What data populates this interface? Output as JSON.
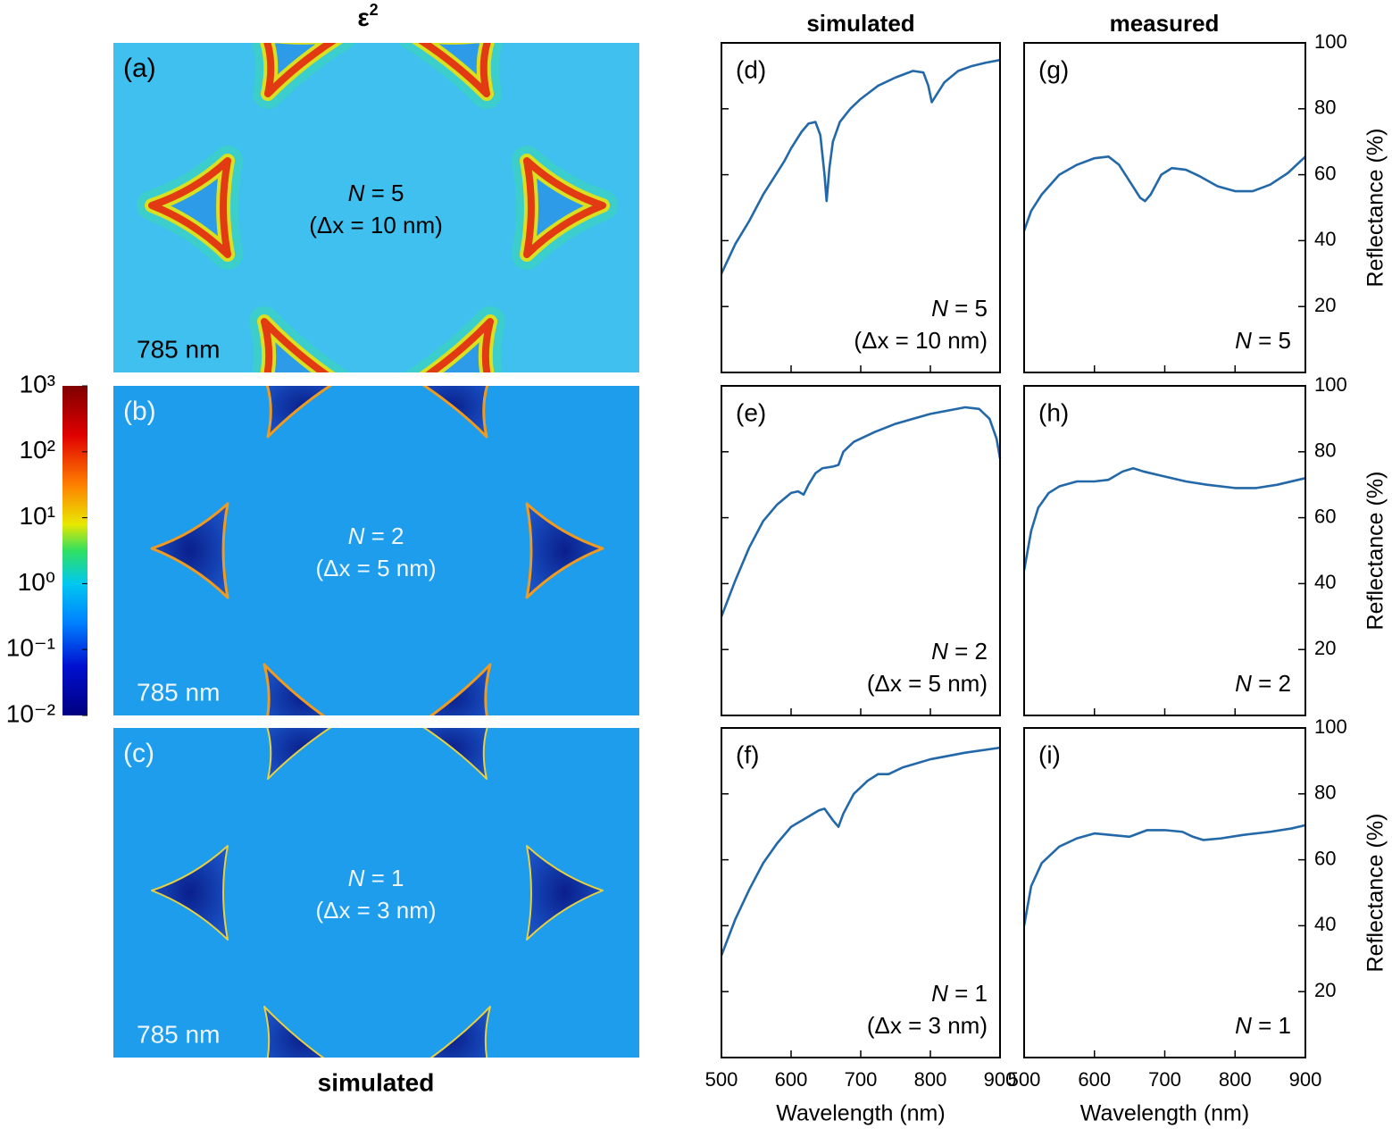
{
  "figure": {
    "field_title": {
      "base": "ε",
      "superscript": "2"
    },
    "field_caption": "simulated",
    "column_titles": [
      "simulated",
      "measured"
    ]
  },
  "colorbar": {
    "scale": "log",
    "lim": [
      0.01,
      1000
    ],
    "ticks": [
      {
        "value": 1000,
        "label": "10³"
      },
      {
        "value": 100,
        "label": "10²"
      },
      {
        "value": 10,
        "label": "10¹"
      },
      {
        "value": 1,
        "label": "10⁰"
      },
      {
        "value": 0.1,
        "label": "10⁻¹"
      },
      {
        "value": 0.01,
        "label": "10⁻²"
      }
    ]
  },
  "field_maps": [
    {
      "panel": "(a)",
      "n_label": {
        "symbol": "N",
        "text": " = 5"
      },
      "note": "(Δx = 10 nm)",
      "wavelength": "785 nm"
    },
    {
      "panel": "(b)",
      "n_label": {
        "symbol": "N",
        "text": " = 2"
      },
      "note": "(Δx = 5 nm)",
      "wavelength": "785 nm"
    },
    {
      "panel": "(c)",
      "n_label": {
        "symbol": "N",
        "text": " = 1"
      },
      "note": "(Δx = 3 nm)",
      "wavelength": "785 nm"
    }
  ],
  "chart_data": [
    {
      "type": "line",
      "panel": "(d)",
      "n_label": {
        "symbol": "N",
        "text": " = 5"
      },
      "note": "(Δx = 10 nm)",
      "x": [
        500,
        520,
        540,
        560,
        575,
        590,
        600,
        615,
        625,
        635,
        642,
        648,
        651,
        655,
        660,
        670,
        685,
        700,
        725,
        750,
        775,
        790,
        797,
        802,
        808,
        820,
        840,
        860,
        880,
        900
      ],
      "series": [
        {
          "color": "#2368a8",
          "values": [
            30,
            39,
            46,
            54,
            59,
            64,
            68,
            73,
            75.5,
            76,
            72,
            60,
            52,
            62,
            70,
            76,
            80,
            83,
            87,
            89.5,
            91.5,
            91,
            87,
            82,
            84,
            88,
            91.5,
            93,
            94,
            94.8
          ]
        }
      ],
      "xlim": [
        500,
        900
      ],
      "xticks": [
        500,
        600,
        700,
        800,
        900
      ],
      "ylim": [
        0,
        100
      ],
      "yticks": [
        20,
        40,
        60,
        80,
        100
      ],
      "yaxis_side": "left",
      "xtick_labels": false,
      "ytick_labels": false
    },
    {
      "type": "line",
      "panel": "(e)",
      "n_label": {
        "symbol": "N",
        "text": " = 2"
      },
      "note": "(Δx = 5 nm)",
      "x": [
        500,
        520,
        540,
        560,
        580,
        600,
        610,
        618,
        625,
        635,
        645,
        660,
        668,
        675,
        690,
        720,
        750,
        800,
        850,
        870,
        885,
        895,
        900
      ],
      "series": [
        {
          "color": "#2368a8",
          "values": [
            30,
            41,
            51,
            59,
            64,
            67.5,
            68,
            67,
            70,
            73.5,
            75,
            75.5,
            76,
            80,
            83,
            86,
            88.5,
            91.5,
            93.5,
            93,
            90,
            84,
            78
          ]
        }
      ],
      "xlim": [
        500,
        900
      ],
      "xticks": [
        500,
        600,
        700,
        800,
        900
      ],
      "ylim": [
        0,
        100
      ],
      "yticks": [
        20,
        40,
        60,
        80,
        100
      ],
      "yaxis_side": "left",
      "xtick_labels": false,
      "ytick_labels": false
    },
    {
      "type": "line",
      "panel": "(f)",
      "n_label": {
        "symbol": "N",
        "text": " = 1"
      },
      "note": "(Δx = 3 nm)",
      "x": [
        500,
        520,
        540,
        560,
        580,
        600,
        620,
        640,
        648,
        660,
        668,
        675,
        690,
        710,
        725,
        740,
        760,
        800,
        850,
        900
      ],
      "series": [
        {
          "color": "#2368a8",
          "values": [
            31,
            42,
            51,
            59,
            65,
            70,
            72.5,
            75,
            75.5,
            72,
            70,
            74,
            80,
            84,
            86,
            86,
            88,
            90.5,
            92.5,
            94
          ]
        }
      ],
      "xlim": [
        500,
        900
      ],
      "xticks": [
        500,
        600,
        700,
        800,
        900
      ],
      "ylim": [
        0,
        100
      ],
      "yticks": [
        20,
        40,
        60,
        80,
        100
      ],
      "xlabel": "Wavelength (nm)",
      "yaxis_side": "left",
      "xtick_labels": true,
      "ytick_labels": false
    },
    {
      "type": "line",
      "panel": "(g)",
      "n_label": {
        "symbol": "N",
        "text": " = 5"
      },
      "x": [
        500,
        510,
        525,
        550,
        575,
        600,
        620,
        635,
        650,
        665,
        672,
        680,
        695,
        710,
        730,
        750,
        775,
        800,
        825,
        850,
        875,
        900
      ],
      "series": [
        {
          "color": "#2368a8",
          "values": [
            43,
            49,
            54,
            60,
            63,
            65,
            65.5,
            63,
            58,
            53,
            52,
            54,
            60,
            62,
            61.5,
            59.5,
            56.5,
            55,
            55,
            57,
            60.5,
            65.5
          ]
        }
      ],
      "xlim": [
        500,
        900
      ],
      "xticks": [
        500,
        600,
        700,
        800,
        900
      ],
      "ylim": [
        0,
        100
      ],
      "yticks": [
        20,
        40,
        60,
        80,
        100
      ],
      "ylabel": "Reflectance (%)",
      "yaxis_side": "right",
      "xtick_labels": false,
      "ytick_labels": true
    },
    {
      "type": "line",
      "panel": "(h)",
      "n_label": {
        "symbol": "N",
        "text": " = 2"
      },
      "x": [
        500,
        510,
        520,
        535,
        550,
        575,
        600,
        620,
        640,
        655,
        670,
        700,
        730,
        760,
        800,
        830,
        860,
        900
      ],
      "series": [
        {
          "color": "#2368a8",
          "values": [
            44,
            56,
            63,
            67.5,
            69.5,
            71,
            71,
            71.5,
            74,
            75,
            74,
            72.5,
            71,
            70,
            69,
            69,
            70,
            72
          ]
        }
      ],
      "xlim": [
        500,
        900
      ],
      "xticks": [
        500,
        600,
        700,
        800,
        900
      ],
      "ylim": [
        0,
        100
      ],
      "yticks": [
        20,
        40,
        60,
        80,
        100
      ],
      "ylabel": "Reflectance (%)",
      "yaxis_side": "right",
      "xtick_labels": false,
      "ytick_labels": true
    },
    {
      "type": "line",
      "panel": "(i)",
      "n_label": {
        "symbol": "N",
        "text": " = 1"
      },
      "x": [
        500,
        510,
        525,
        550,
        575,
        600,
        625,
        650,
        675,
        700,
        725,
        740,
        755,
        780,
        810,
        850,
        880,
        900
      ],
      "series": [
        {
          "color": "#2368a8",
          "values": [
            40,
            52,
            59,
            64,
            66.5,
            68,
            67.5,
            67,
            69,
            69,
            68.5,
            67,
            66,
            66.5,
            67.5,
            68.5,
            69.5,
            70.5
          ]
        }
      ],
      "xlim": [
        500,
        900
      ],
      "xticks": [
        500,
        600,
        700,
        800,
        900
      ],
      "ylim": [
        0,
        100
      ],
      "yticks": [
        20,
        40,
        60,
        80,
        100
      ],
      "xlabel": "Wavelength (nm)",
      "ylabel": "Reflectance (%)",
      "yaxis_side": "right",
      "xtick_labels": true,
      "ytick_labels": true
    }
  ]
}
